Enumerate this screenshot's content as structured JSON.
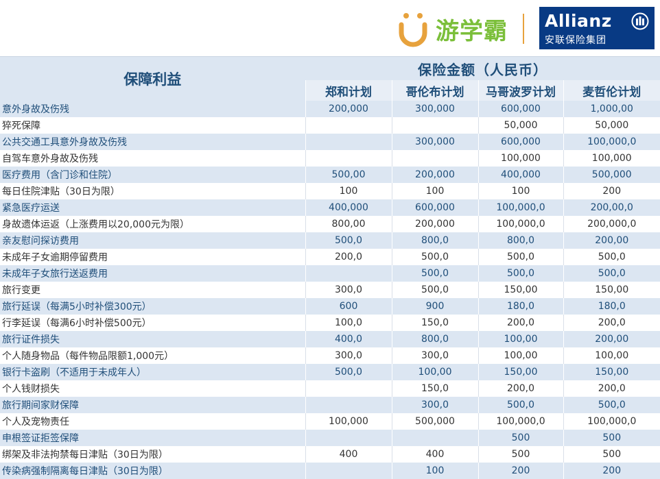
{
  "header": {
    "brand_text": "游学霸",
    "allianz_name": "Allianz",
    "allianz_sub": "安联保险集团"
  },
  "table": {
    "benefit_header": "保障利益",
    "amount_header": "保险金额（人民币）",
    "plans": [
      "郑和计划",
      "哥伦布计划",
      "马哥波罗计划",
      "麦哲伦计划"
    ],
    "rows": [
      {
        "label": "意外身故及伤残",
        "values": [
          "200,000",
          "300,000",
          "600,000",
          "1,000,00"
        ]
      },
      {
        "label": "猝死保障",
        "values": [
          "",
          "",
          "50,000",
          "50,000"
        ]
      },
      {
        "label": "公共交通工具意外身故及伤残",
        "values": [
          "",
          "300,000",
          "600,000",
          "100,000,0"
        ]
      },
      {
        "label": "自驾车意外身故及伤残",
        "values": [
          "",
          "",
          "100,000",
          "100,000"
        ]
      },
      {
        "label": "医疗费用（含门诊和住院）",
        "values": [
          "500,00",
          "200,000",
          "400,000",
          "500,000"
        ]
      },
      {
        "label": "每日住院津贴（30日为限）",
        "values": [
          "100",
          "100",
          "100",
          "200"
        ]
      },
      {
        "label": "紧急医疗运送",
        "values": [
          "400,000",
          "600,000",
          "100,000,0",
          "200,00,0"
        ]
      },
      {
        "label": "身故遗体运返（上涨费用以20,000元为限）",
        "values": [
          "800,00",
          "200,000",
          "100,000,0",
          "200,000,0"
        ]
      },
      {
        "label": "亲友慰问探访费用",
        "values": [
          "500,0",
          "800,0",
          "800,0",
          "200,00"
        ]
      },
      {
        "label": "未成年子女逾期停留费用",
        "values": [
          "200,0",
          "500,0",
          "500,0",
          "500,0"
        ]
      },
      {
        "label": "未成年子女旅行送返费用",
        "values": [
          "",
          "500,0",
          "500,0",
          "500,0"
        ]
      },
      {
        "label": "旅行变更",
        "values": [
          "300,0",
          "500,0",
          "150,00",
          "150,00"
        ]
      },
      {
        "label": "旅行延误（每满5小时补偿300元）",
        "values": [
          "600",
          "900",
          "180,0",
          "180,0"
        ]
      },
      {
        "label": "行李延误（每满6小时补偿500元）",
        "values": [
          "100,0",
          "150,0",
          "200,0",
          "200,0"
        ]
      },
      {
        "label": "旅行证件损失",
        "values": [
          "400,0",
          "800,0",
          "100,00",
          "200,00"
        ]
      },
      {
        "label": "个人随身物品（每件物品限额1,000元）",
        "values": [
          "300,0",
          "300,0",
          "100,00",
          "100,00"
        ]
      },
      {
        "label": "银行卡盗刷（不适用于未成年人）",
        "values": [
          "500,0",
          "100,00",
          "150,00",
          "150,00"
        ]
      },
      {
        "label": "个人钱财损失",
        "values": [
          "",
          "150,0",
          "200,0",
          "200,0"
        ]
      },
      {
        "label": "旅行期间家财保障",
        "values": [
          "",
          "300,0",
          "500,0",
          "500,0"
        ]
      },
      {
        "label": "个人及宠物责任",
        "values": [
          "100,000",
          "500,000",
          "100,000,0",
          "100,000,0"
        ]
      },
      {
        "label": "申根签证拒签保障",
        "values": [
          "",
          "",
          "500",
          "500"
        ]
      },
      {
        "label": "绑架及非法拘禁每日津贴（30日为限）",
        "values": [
          "400",
          "400",
          "500",
          "500"
        ]
      },
      {
        "label": "传染病强制隔离每日津贴（30日为限）",
        "values": [
          "",
          "100",
          "200",
          "200"
        ]
      }
    ]
  },
  "colors": {
    "header_bg": "#dce6f2",
    "header_text": "#1f4e79",
    "brand_green": "#7bbf3a",
    "brand_orange": "#e7a23d",
    "allianz_blue": "#083a84"
  }
}
